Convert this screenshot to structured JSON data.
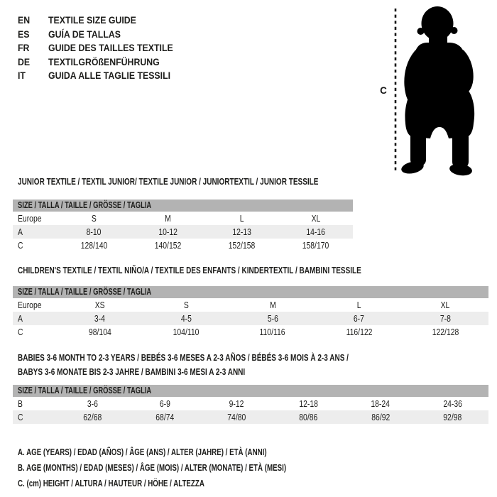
{
  "header": {
    "languages": [
      {
        "code": "EN",
        "label": "TEXTILE SIZE GUIDE"
      },
      {
        "code": "ES",
        "label": "GUÍA DE TALLAS"
      },
      {
        "code": "FR",
        "label": "GUIDE DES TAILLES TEXTILE"
      },
      {
        "code": "DE",
        "label": "TEXTILGRÖßENFÜHRUNG"
      },
      {
        "code": "IT",
        "label": "GUIDA ALLE TAGLIE TESSILI"
      }
    ]
  },
  "figure": {
    "silhouette": "standing-toddler",
    "measure_label": "C"
  },
  "tables": [
    {
      "id": "junior",
      "title_lines": [
        "JUNIOR TEXTILE / TEXTIL JUNIOR/ TEXTILE JUNIOR / JUNIORTEXTIL / JUNIOR TESSILE"
      ],
      "size_header": "SIZE / TALLA / TAILLE / GRÖSSE / TAGLIA",
      "rows": [
        {
          "label": "Europe",
          "shaded": false,
          "values": [
            "S",
            "M",
            "L",
            "XL"
          ]
        },
        {
          "label": "A",
          "shaded": true,
          "values": [
            "8-10",
            "10-12",
            "12-13",
            "14-16"
          ]
        },
        {
          "label": "C",
          "shaded": false,
          "values": [
            "128/140",
            "140/152",
            "152/158",
            "158/170"
          ]
        }
      ]
    },
    {
      "id": "children",
      "title_lines": [
        "CHILDREN'S TEXTILE / TEXTIL NIÑO/A / TEXTILE DES ENFANTS / KINDERTEXTIL / BAMBINI TESSILE"
      ],
      "size_header": "SIZE / TALLA / TAILLE / GRÖSSE / TAGLIA",
      "rows": [
        {
          "label": "Europe",
          "shaded": false,
          "values": [
            "XS",
            "S",
            "M",
            "L",
            "XL"
          ]
        },
        {
          "label": "A",
          "shaded": true,
          "values": [
            "3-4",
            "4-5",
            "5-6",
            "6-7",
            "7-8"
          ]
        },
        {
          "label": "C",
          "shaded": false,
          "values": [
            "98/104",
            "104/110",
            "110/116",
            "116/122",
            "122/128"
          ]
        }
      ]
    },
    {
      "id": "babies",
      "title_lines": [
        "BABIES 3-6 MONTH TO 2-3 YEARS / BEBÉS 3-6 MESES A 2-3 AÑOS / BÉBÉS 3-6 MOIS À 2-3 ANS /",
        "BABYS 3-6 MONATE BIS 2-3 JAHRE / BAMBINI 3-6 MESI A 2-3 ANNI"
      ],
      "size_header": "SIZE / TALLA / TAILLE / GRÖSSE / TAGLIA",
      "rows": [
        {
          "label": "B",
          "shaded": false,
          "values": [
            "3-6",
            "6-9",
            "9-12",
            "12-18",
            "18-24",
            "24-36"
          ]
        },
        {
          "label": "C",
          "shaded": true,
          "values": [
            "62/68",
            "68/74",
            "74/80",
            "80/86",
            "86/92",
            "92/98"
          ]
        }
      ]
    }
  ],
  "legend": {
    "lines": [
      "A. AGE (YEARS) / EDAD (AÑOS) / ÂGE (ANS) / ALTER (JAHRE) / ETÀ (ANNI)",
      "B. AGE (MONTHS) / EDAD (MESES) / ÂGE (MOIS) / ALTER (MONATE) / ETÀ (MESI)",
      "C. (cm) HEIGHT / ALTURA / HAUTEUR / HÖHE / ALTEZZA"
    ]
  },
  "colors": {
    "header_bar": "#b3b3b3",
    "row_shade": "#ededed",
    "text": "#1d1d1b",
    "silhouette": "#000000"
  }
}
